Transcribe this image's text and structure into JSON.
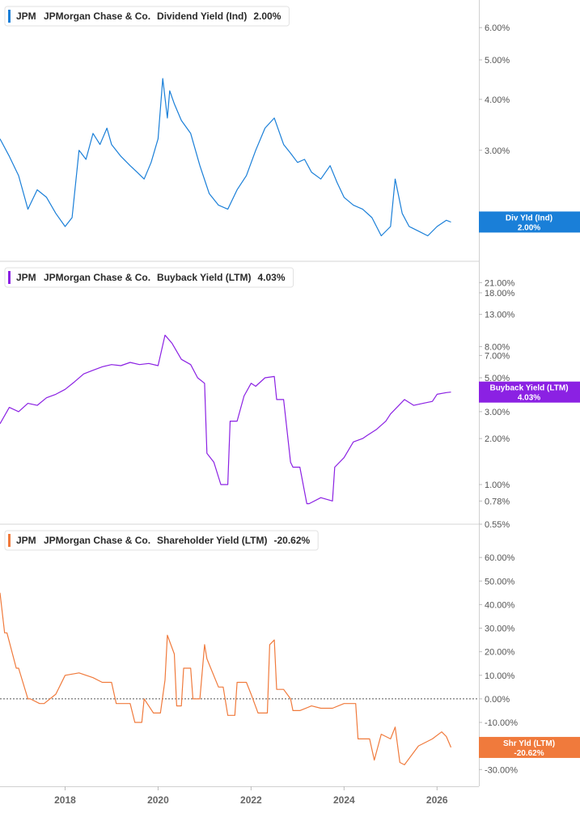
{
  "chart_data": [
    {
      "type": "line",
      "ticker": "JPM",
      "company": "JPMorgan Chase & Co.",
      "metric": "Dividend Yield (Ind)",
      "current_value": "2.00%",
      "color": "#1a7fd8",
      "scale": "log",
      "ylim": [
        1.7,
        6.7
      ],
      "y_ticks": [
        {
          "value": 6,
          "label": "6.00%"
        },
        {
          "value": 5,
          "label": "5.00%"
        },
        {
          "value": 4,
          "label": "4.00%"
        },
        {
          "value": 3,
          "label": "3.00%"
        },
        {
          "value": 2,
          "label": "2.00%"
        }
      ],
      "tag": {
        "value": 2.0,
        "line1": "Div Yld (Ind)",
        "line2": "2.00%"
      },
      "series": [
        {
          "x": [
            2016.6,
            2016.8,
            2017.0,
            2017.2,
            2017.4,
            2017.6,
            2017.8,
            2018.0,
            2018.15,
            2018.3,
            2018.45,
            2018.6,
            2018.75,
            2018.9,
            2019.0,
            2019.2,
            2019.4,
            2019.55,
            2019.7,
            2019.85,
            2020.0,
            2020.1,
            2020.2,
            2020.25,
            2020.35,
            2020.5,
            2020.7,
            2020.9,
            2021.1,
            2021.3,
            2021.5,
            2021.7,
            2021.9,
            2022.1,
            2022.3,
            2022.5,
            2022.7,
            2022.85,
            2023.0,
            2023.15,
            2023.3,
            2023.5,
            2023.7,
            2023.85,
            2024.0,
            2024.2,
            2024.4,
            2024.6,
            2024.8,
            2025.0,
            2025.1,
            2025.25,
            2025.4,
            2025.6,
            2025.8,
            2026.0,
            2026.2,
            2026.3
          ],
          "values": [
            3.2,
            2.9,
            2.6,
            2.15,
            2.4,
            2.3,
            2.1,
            1.95,
            2.05,
            3.0,
            2.85,
            3.3,
            3.1,
            3.4,
            3.1,
            2.9,
            2.75,
            2.65,
            2.55,
            2.8,
            3.2,
            4.5,
            3.6,
            4.2,
            3.9,
            3.55,
            3.3,
            2.75,
            2.35,
            2.2,
            2.15,
            2.4,
            2.6,
            3.0,
            3.4,
            3.6,
            3.1,
            2.95,
            2.8,
            2.85,
            2.65,
            2.55,
            2.75,
            2.5,
            2.3,
            2.2,
            2.15,
            2.05,
            1.85,
            1.95,
            2.55,
            2.1,
            1.95,
            1.9,
            1.85,
            1.95,
            2.02,
            2.0
          ]
        }
      ]
    },
    {
      "type": "line",
      "ticker": "JPM",
      "company": "JPMorgan Chase & Co.",
      "metric": "Buyback Yield (LTM)",
      "current_value": "4.03%",
      "color": "#8b21e3",
      "scale": "log",
      "ylim": [
        0.55,
        25
      ],
      "y_ticks": [
        {
          "value": 21,
          "label": "21.00%"
        },
        {
          "value": 18,
          "label": "18.00%"
        },
        {
          "value": 13,
          "label": "13.00%"
        },
        {
          "value": 8,
          "label": "8.00%"
        },
        {
          "value": 7,
          "label": "7.00%"
        },
        {
          "value": 5,
          "label": "5.00%"
        },
        {
          "value": 3,
          "label": "3.00%"
        },
        {
          "value": 2,
          "label": "2.00%"
        },
        {
          "value": 1,
          "label": "1.00%"
        },
        {
          "value": 0.78,
          "label": "0.78%"
        },
        {
          "value": 0.55,
          "label": "0.55%"
        }
      ],
      "tag": {
        "value": 4.03,
        "line1": "Buyback Yield (LTM)",
        "line2": "4.03%"
      },
      "series": [
        {
          "x": [
            2016.6,
            2016.8,
            2017.0,
            2017.2,
            2017.4,
            2017.6,
            2017.8,
            2018.0,
            2018.2,
            2018.4,
            2018.6,
            2018.8,
            2019.0,
            2019.2,
            2019.4,
            2019.6,
            2019.8,
            2020.0,
            2020.15,
            2020.3,
            2020.5,
            2020.7,
            2020.85,
            2021.0,
            2021.05,
            2021.2,
            2021.35,
            2021.5,
            2021.55,
            2021.7,
            2021.85,
            2022.0,
            2022.1,
            2022.3,
            2022.5,
            2022.55,
            2022.7,
            2022.85,
            2022.9,
            2023.05,
            2023.2,
            2023.25,
            2023.5,
            2023.75,
            2023.8,
            2024.0,
            2024.2,
            2024.4,
            2024.5,
            2024.7,
            2024.9,
            2025.0,
            2025.3,
            2025.5,
            2025.7,
            2025.9,
            2026.0,
            2026.2,
            2026.3
          ],
          "values": [
            2.5,
            3.2,
            3.0,
            3.4,
            3.3,
            3.7,
            3.9,
            4.2,
            4.7,
            5.3,
            5.6,
            5.9,
            6.1,
            6.0,
            6.3,
            6.1,
            6.2,
            6.0,
            9.5,
            8.4,
            6.6,
            6.1,
            5.0,
            4.6,
            1.6,
            1.4,
            1.0,
            1.0,
            2.6,
            2.6,
            3.8,
            4.6,
            4.4,
            5.0,
            5.1,
            3.6,
            3.6,
            1.4,
            1.3,
            1.3,
            0.75,
            0.75,
            0.82,
            0.78,
            1.3,
            1.5,
            1.9,
            2.0,
            2.1,
            2.3,
            2.6,
            2.9,
            3.6,
            3.3,
            3.4,
            3.5,
            3.9,
            4.0,
            4.03
          ]
        }
      ]
    },
    {
      "type": "line",
      "ticker": "JPM",
      "company": "JPMorgan Chase & Co.",
      "metric": "Shareholder Yield (LTM)",
      "current_value": "-20.62%",
      "color": "#f07a3c",
      "scale": "linear",
      "ylim": [
        -33,
        70
      ],
      "zero_line": true,
      "y_ticks": [
        {
          "value": 60,
          "label": "60.00%"
        },
        {
          "value": 50,
          "label": "50.00%"
        },
        {
          "value": 40,
          "label": "40.00%"
        },
        {
          "value": 30,
          "label": "30.00%"
        },
        {
          "value": 20,
          "label": "20.00%"
        },
        {
          "value": 10,
          "label": "10.00%"
        },
        {
          "value": 0,
          "label": "0.00%"
        },
        {
          "value": -10,
          "label": "-10.00%"
        },
        {
          "value": -20,
          "label": "-20"
        },
        {
          "value": -30,
          "label": "-30.00%"
        }
      ],
      "tag": {
        "value": -20.62,
        "line1": "Shr Yld (LTM)",
        "line2": "-20.62%"
      },
      "series": [
        {
          "x": [
            2016.6,
            2016.7,
            2016.75,
            2016.95,
            2017.0,
            2017.2,
            2017.25,
            2017.45,
            2017.55,
            2017.8,
            2018.0,
            2018.3,
            2018.6,
            2018.8,
            2019.0,
            2019.1,
            2019.4,
            2019.5,
            2019.65,
            2019.7,
            2019.9,
            2020.05,
            2020.15,
            2020.2,
            2020.35,
            2020.4,
            2020.5,
            2020.55,
            2020.7,
            2020.75,
            2020.9,
            2021.0,
            2021.05,
            2021.3,
            2021.4,
            2021.5,
            2021.65,
            2021.7,
            2021.9,
            2022.0,
            2022.15,
            2022.35,
            2022.4,
            2022.5,
            2022.55,
            2022.7,
            2022.85,
            2022.9,
            2023.05,
            2023.3,
            2023.5,
            2023.75,
            2024.0,
            2024.25,
            2024.3,
            2024.55,
            2024.65,
            2024.8,
            2025.0,
            2025.1,
            2025.2,
            2025.3,
            2025.6,
            2025.9,
            2026.1,
            2026.2,
            2026.3
          ],
          "values": [
            45,
            28,
            28,
            13,
            13,
            0,
            0,
            -2,
            -2,
            2,
            10,
            11,
            9,
            7,
            7,
            -2,
            -2,
            -10,
            -10,
            0,
            -6,
            -6,
            8,
            27,
            19,
            -3,
            -3,
            13,
            13,
            0,
            0,
            23,
            17,
            5,
            5,
            -7,
            -7,
            7,
            7,
            2,
            -6,
            -6,
            23,
            25,
            4,
            4,
            0,
            -5,
            -5,
            -3,
            -4,
            -4,
            -2,
            -2,
            -17,
            -17,
            -26,
            -15,
            -17,
            -12,
            -27,
            -28,
            -20,
            -17,
            -14,
            -16,
            -20.62
          ]
        }
      ]
    }
  ],
  "x_axis": {
    "ticks": [
      {
        "value": 2018,
        "label": "2018"
      },
      {
        "value": 2020,
        "label": "2020"
      },
      {
        "value": 2022,
        "label": "2022"
      },
      {
        "value": 2024,
        "label": "2024"
      },
      {
        "value": 2026,
        "label": "2026"
      }
    ]
  }
}
